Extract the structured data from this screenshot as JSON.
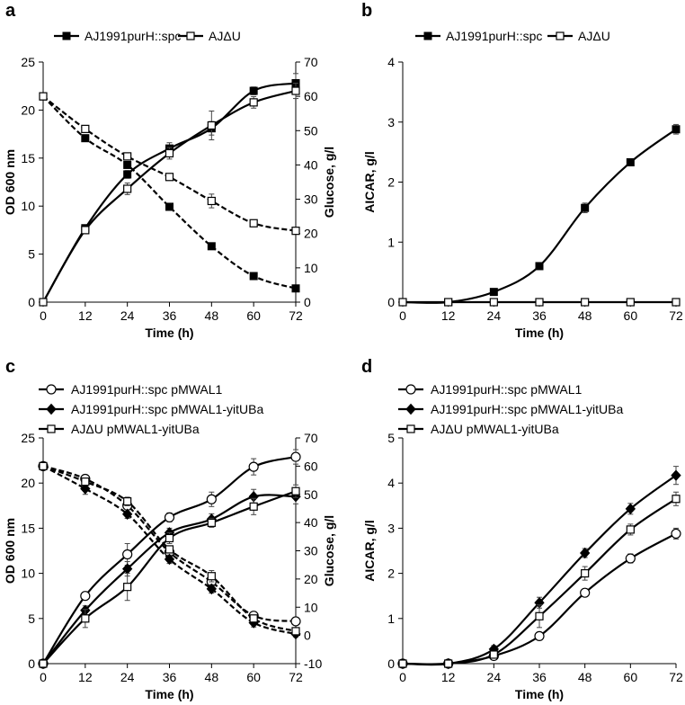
{
  "chart_data": [
    {
      "panel": "a",
      "type": "line",
      "x": [
        0,
        12,
        24,
        36,
        48,
        60,
        72
      ],
      "xlabel": "Time (h)",
      "ylabel": "OD 600 nm",
      "y2label": "Glucose, g/l",
      "ylim": [
        0,
        25
      ],
      "y2lim": [
        0,
        70
      ],
      "xticks": [
        "0",
        "12",
        "24",
        "36",
        "48",
        "60",
        "72"
      ],
      "yticks": [
        "0",
        "5",
        "10",
        "15",
        "20",
        "25"
      ],
      "y2ticks": [
        "0",
        "10",
        "20",
        "30",
        "40",
        "50",
        "60",
        "70"
      ],
      "legend": [
        "AJ1991purH::spc",
        "AJΔU"
      ],
      "series": [
        {
          "name": "AJ1991purH::spc",
          "measure": "OD",
          "axis": "left",
          "marker": "square-filled",
          "dashed": false,
          "values": [
            0,
            7.7,
            13.3,
            16.0,
            18.1,
            22.0,
            22.8
          ],
          "errors": [
            0,
            0.3,
            0.4,
            0.6,
            0.7,
            0.4,
            1.0
          ]
        },
        {
          "name": "AJΔU",
          "measure": "OD",
          "axis": "left",
          "marker": "square-open",
          "dashed": false,
          "values": [
            0,
            7.5,
            11.8,
            15.5,
            18.4,
            20.8,
            22.0
          ],
          "errors": [
            0,
            0.3,
            0.6,
            0.6,
            1.5,
            0.6,
            0.8
          ]
        },
        {
          "name": "AJ1991purH::spc",
          "measure": "Glucose",
          "axis": "right",
          "marker": "square-filled",
          "dashed": true,
          "values": [
            60.0,
            47.8,
            40.0,
            27.8,
            16.3,
            7.6,
            4.0
          ],
          "errors": [
            0,
            0.7,
            0.8,
            1.0,
            0.5,
            0.4,
            0.3
          ]
        },
        {
          "name": "AJΔU",
          "measure": "Glucose",
          "axis": "right",
          "marker": "square-open",
          "dashed": true,
          "values": [
            60.0,
            50.5,
            42.5,
            36.5,
            29.5,
            23.0,
            20.8
          ],
          "errors": [
            0,
            0.8,
            0.8,
            1.0,
            2.0,
            1.0,
            0.8
          ]
        }
      ]
    },
    {
      "panel": "b",
      "type": "line",
      "x": [
        0,
        12,
        24,
        36,
        48,
        60,
        72
      ],
      "xlabel": "Time (h)",
      "ylabel": "AICAR, g/l",
      "ylim": [
        0,
        4
      ],
      "xticks": [
        "0",
        "12",
        "24",
        "36",
        "48",
        "60",
        "72"
      ],
      "yticks": [
        "0",
        "1",
        "2",
        "3",
        "4"
      ],
      "legend": [
        "AJ1991purH::spc",
        "AJΔU"
      ],
      "series": [
        {
          "name": "AJ1991purH::spc",
          "marker": "square-filled",
          "values": [
            0,
            0,
            0.17,
            0.6,
            1.57,
            2.33,
            2.88
          ],
          "errors": [
            0,
            0,
            0.02,
            0.04,
            0.08,
            0.06,
            0.08
          ]
        },
        {
          "name": "AJΔU",
          "marker": "square-open",
          "values": [
            0,
            0,
            0,
            0,
            0,
            0,
            0
          ],
          "errors": [
            0,
            0,
            0,
            0,
            0,
            0,
            0
          ]
        }
      ]
    },
    {
      "panel": "c",
      "type": "line",
      "x": [
        0,
        12,
        24,
        36,
        48,
        60,
        72
      ],
      "xlabel": "Time (h)",
      "ylabel": "OD 600 nm",
      "y2label": "Glucose, g/l",
      "ylim": [
        0,
        25
      ],
      "y2lim": [
        -10,
        70
      ],
      "xticks": [
        "0",
        "12",
        "24",
        "36",
        "48",
        "60",
        "72"
      ],
      "yticks": [
        "0",
        "5",
        "10",
        "15",
        "20",
        "25"
      ],
      "y2ticks": [
        "-10",
        "0",
        "10",
        "20",
        "30",
        "40",
        "50",
        "60",
        "70"
      ],
      "legend": [
        "AJ1991purH::spc pMWAL1",
        "AJ1991purH::spc pMWAL1-yitUBa",
        "AJΔU pMWAL1-yitUBa"
      ],
      "series": [
        {
          "name": "AJ1991purH::spc pMWAL1",
          "measure": "OD",
          "axis": "left",
          "marker": "circle-open",
          "dashed": false,
          "values": [
            0,
            7.5,
            12.1,
            16.2,
            18.2,
            21.8,
            22.9
          ],
          "errors": [
            0,
            0.3,
            1.2,
            0.5,
            0.8,
            0.9,
            0.8
          ]
        },
        {
          "name": "AJ1991purH::spc pMWAL1-yitUBa",
          "measure": "OD",
          "axis": "left",
          "marker": "diamond-filled",
          "dashed": false,
          "values": [
            0,
            5.9,
            10.5,
            14.5,
            16.0,
            18.5,
            18.5
          ],
          "errors": [
            0,
            0.5,
            0.8,
            0.5,
            0.6,
            0.8,
            0.8
          ]
        },
        {
          "name": "AJΔU pMWAL1-yitUBa",
          "measure": "OD",
          "axis": "left",
          "marker": "square-open",
          "dashed": false,
          "values": [
            0,
            5.0,
            8.5,
            13.9,
            15.6,
            17.4,
            19.1
          ],
          "errors": [
            0,
            1.0,
            1.5,
            0.6,
            0.5,
            0.9,
            0.7
          ]
        },
        {
          "name": "AJ1991purH::spc pMWAL1",
          "measure": "Glucose",
          "axis": "right",
          "marker": "circle-open",
          "dashed": true,
          "values": [
            60.0,
            55.5,
            46.0,
            29.5,
            19.0,
            7.0,
            5.0
          ],
          "errors": [
            0,
            1.0,
            1.0,
            1.0,
            1.0,
            0.8,
            0.8
          ]
        },
        {
          "name": "AJ1991purH::spc pMWAL1-yitUBa",
          "measure": "Glucose",
          "axis": "right",
          "marker": "diamond-filled",
          "dashed": true,
          "values": [
            60.0,
            52.0,
            43.0,
            27.0,
            16.5,
            4.5,
            0.5
          ],
          "errors": [
            0,
            2.0,
            1.5,
            1.5,
            1.5,
            1.5,
            1.0
          ]
        },
        {
          "name": "AJΔU pMWAL1-yitUBa",
          "measure": "Glucose",
          "axis": "right",
          "marker": "square-open",
          "dashed": true,
          "values": [
            60.0,
            54.5,
            47.5,
            30.5,
            21.0,
            6.0,
            1.5
          ],
          "errors": [
            0,
            1.0,
            1.5,
            1.0,
            2.0,
            1.0,
            1.0
          ]
        }
      ]
    },
    {
      "panel": "d",
      "type": "line",
      "x": [
        0,
        12,
        24,
        36,
        48,
        60,
        72
      ],
      "xlabel": "Time (h)",
      "ylabel": "AICAR, g/l",
      "ylim": [
        0,
        5
      ],
      "xticks": [
        "0",
        "12",
        "24",
        "36",
        "48",
        "60",
        "72"
      ],
      "yticks": [
        "0",
        "1",
        "2",
        "3",
        "4",
        "5"
      ],
      "legend": [
        "AJ1991purH::spc pMWAL1",
        "AJ1991purH::spc pMWAL1-yitUBa",
        "AJΔU pMWAL1-yitUBa"
      ],
      "series": [
        {
          "name": "AJ1991purH::spc pMWAL1",
          "marker": "circle-open",
          "values": [
            0,
            0,
            0.17,
            0.61,
            1.57,
            2.33,
            2.88
          ],
          "errors": [
            0,
            0,
            0.03,
            0.05,
            0.07,
            0.1,
            0.12
          ]
        },
        {
          "name": "AJ1991purH::spc pMWAL1-yitUBa",
          "marker": "diamond-filled",
          "values": [
            0,
            0,
            0.32,
            1.35,
            2.45,
            3.43,
            4.17
          ],
          "errors": [
            0,
            0,
            0.08,
            0.12,
            0.1,
            0.12,
            0.2
          ]
        },
        {
          "name": "AJΔU pMWAL1-yitUBa",
          "marker": "square-open",
          "values": [
            0,
            0,
            0.2,
            1.05,
            2.0,
            2.97,
            3.65
          ],
          "errors": [
            0,
            0,
            0.06,
            0.25,
            0.15,
            0.12,
            0.15
          ]
        }
      ]
    }
  ]
}
